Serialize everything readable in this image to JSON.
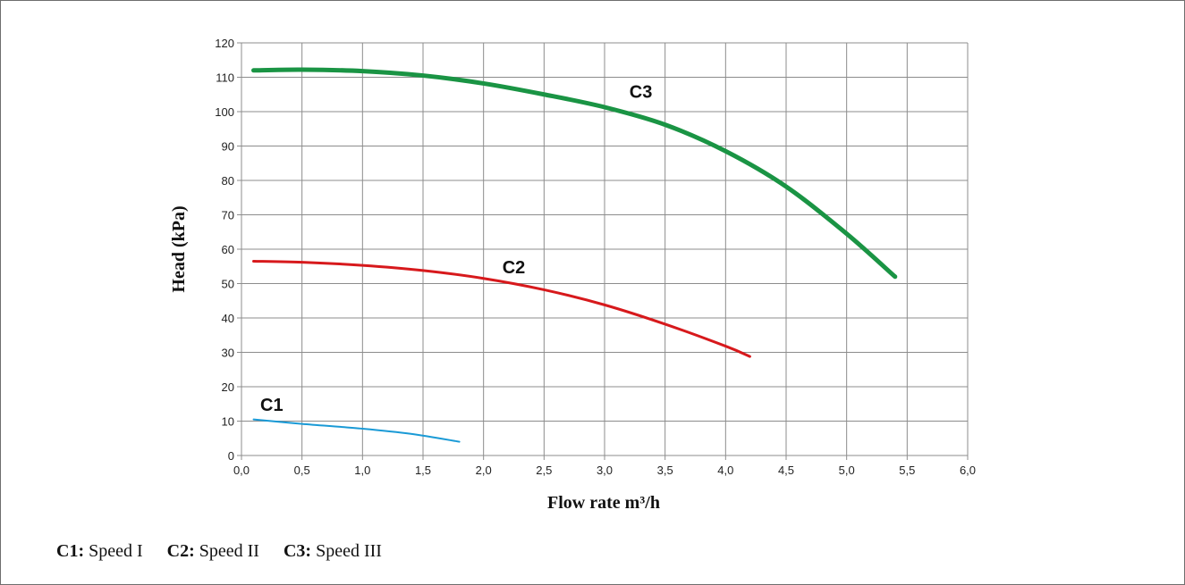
{
  "chart_data": {
    "type": "line",
    "xlabel": "Flow rate m³/h",
    "ylabel": "Head (kPa)",
    "xlim": [
      0,
      6
    ],
    "ylim": [
      0,
      120
    ],
    "xticks": [
      "0,0",
      "0,5",
      "1,0",
      "1,5",
      "2,0",
      "2,5",
      "3,0",
      "3,5",
      "4,0",
      "4,5",
      "5,0",
      "5,5",
      "6,0"
    ],
    "yticks": [
      "0",
      "10",
      "20",
      "30",
      "40",
      "50",
      "60",
      "70",
      "80",
      "90",
      "100",
      "110",
      "120"
    ],
    "grid": true,
    "series": [
      {
        "name": "C1",
        "color": "#1a9ad6",
        "x": [
          0.1,
          0.5,
          1.0,
          1.4,
          1.8
        ],
        "y": [
          10.5,
          9.2,
          7.8,
          6.3,
          4.0
        ]
      },
      {
        "name": "C2",
        "color": "#d7191c",
        "x": [
          0.1,
          0.5,
          1.0,
          1.5,
          2.0,
          2.5,
          3.0,
          3.5,
          4.0,
          4.2
        ],
        "y": [
          56.5,
          56.2,
          55.3,
          53.8,
          51.5,
          48.2,
          43.8,
          38.2,
          31.8,
          28.8
        ]
      },
      {
        "name": "C3",
        "color": "#1a9444",
        "x": [
          0.1,
          0.5,
          1.0,
          1.5,
          2.0,
          2.5,
          3.0,
          3.5,
          4.0,
          4.5,
          5.0,
          5.4
        ],
        "y": [
          112,
          112.2,
          111.8,
          110.5,
          108.2,
          105.0,
          101.3,
          96.2,
          88.5,
          78.2,
          64.5,
          52.0
        ]
      }
    ],
    "annotations": [
      {
        "text": "C1",
        "x": 0.25,
        "y": 13
      },
      {
        "text": "C2",
        "x": 2.25,
        "y": 53
      },
      {
        "text": "C3",
        "x": 3.3,
        "y": 104
      }
    ]
  },
  "legend": [
    {
      "key": "C1:",
      "label": "Speed I"
    },
    {
      "key": "C2:",
      "label": "Speed II"
    },
    {
      "key": "C3:",
      "label": "Speed III"
    }
  ]
}
